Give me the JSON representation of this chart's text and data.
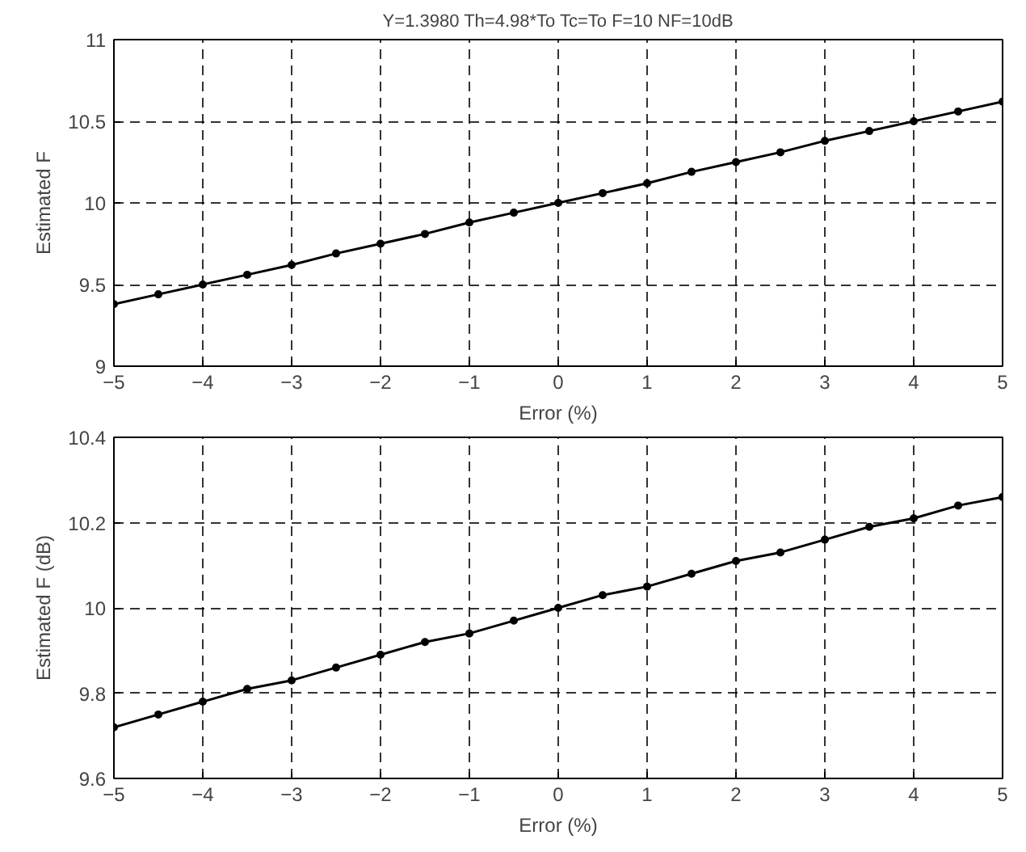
{
  "chart_data": [
    {
      "type": "line",
      "title": "Y=1.3980 Th=4.98*To Tc=To F=10 NF=10dB",
      "xlabel": "Error (%)",
      "ylabel": "Estimated F",
      "x": [
        -5,
        -4.5,
        -4,
        -3.5,
        -3,
        -2.5,
        -2,
        -1.5,
        -1,
        -0.5,
        0,
        0.5,
        1,
        1.5,
        2,
        2.5,
        3,
        3.5,
        4,
        4.5,
        5
      ],
      "series": [
        {
          "color": "#000000",
          "values": [
            9.38,
            9.44,
            9.5,
            9.56,
            9.62,
            9.69,
            9.75,
            9.81,
            9.88,
            9.94,
            10,
            10.06,
            10.12,
            10.19,
            10.25,
            10.31,
            10.38,
            10.44,
            10.5,
            10.56,
            10.62
          ]
        }
      ],
      "xlim": [
        -5,
        5
      ],
      "xticks": [
        -5,
        -4,
        -3,
        -2,
        -1,
        0,
        1,
        2,
        3,
        4,
        5
      ],
      "ylim": [
        9,
        11
      ],
      "yticks": [
        9,
        9.5,
        10,
        10.5,
        11
      ],
      "grid": true,
      "marker": "circle",
      "line_style": "solid"
    },
    {
      "type": "line",
      "xlabel": "Error (%)",
      "ylabel": "Estimated F (dB)",
      "x": [
        -5,
        -4.5,
        -4,
        -3.5,
        -3,
        -2.5,
        -2,
        -1.5,
        -1,
        -0.5,
        0,
        0.5,
        1,
        1.5,
        2,
        2.5,
        3,
        3.5,
        4,
        4.5,
        5
      ],
      "series": [
        {
          "color": "#000000",
          "values": [
            9.72,
            9.75,
            9.78,
            9.81,
            9.83,
            9.86,
            9.89,
            9.92,
            9.94,
            9.97,
            10,
            10.03,
            10.05,
            10.08,
            10.11,
            10.13,
            10.16,
            10.19,
            10.21,
            10.24,
            10.26
          ]
        }
      ],
      "xlim": [
        -5,
        5
      ],
      "xticks": [
        -5,
        -4,
        -3,
        -2,
        -1,
        0,
        1,
        2,
        3,
        4,
        5
      ],
      "ylim": [
        9.6,
        10.4
      ],
      "yticks": [
        9.6,
        9.8,
        10,
        10.2,
        10.4
      ],
      "grid": true,
      "marker": "circle",
      "line_style": "solid"
    }
  ]
}
